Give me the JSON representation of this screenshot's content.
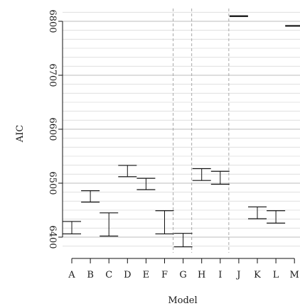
{
  "chart_data": {
    "type": "errorbar",
    "xlabel": "Model",
    "ylabel": "AIC",
    "title": "",
    "categories": [
      "A",
      "B",
      "C",
      "D",
      "E",
      "F",
      "G",
      "H",
      "I",
      "J",
      "K",
      "L",
      "M"
    ],
    "intervals": [
      {
        "model": "A",
        "low": 6406,
        "high": 6429
      },
      {
        "model": "B",
        "low": 6465,
        "high": 6486
      },
      {
        "model": "C",
        "low": 6402,
        "high": 6445
      },
      {
        "model": "D",
        "low": 6512,
        "high": 6533
      },
      {
        "model": "E",
        "low": 6488,
        "high": 6509
      },
      {
        "model": "F",
        "low": 6406,
        "high": 6449
      },
      {
        "model": "G",
        "low": 6382,
        "high": 6407
      },
      {
        "model": "H",
        "low": 6505,
        "high": 6527
      },
      {
        "model": "I",
        "low": 6498,
        "high": 6522
      },
      {
        "model": "J",
        "low": 6809,
        "high": 6810
      },
      {
        "model": "K",
        "low": 6434,
        "high": 6456
      },
      {
        "model": "L",
        "low": 6426,
        "high": 6449
      },
      {
        "model": "M",
        "low": 6791,
        "high": 6792
      }
    ],
    "yticks": [
      6400,
      6500,
      6600,
      6700,
      6800
    ],
    "ylim": [
      6375,
      6820
    ],
    "grid": true,
    "dashed_separators_after": [
      "F",
      "G",
      "I"
    ]
  }
}
